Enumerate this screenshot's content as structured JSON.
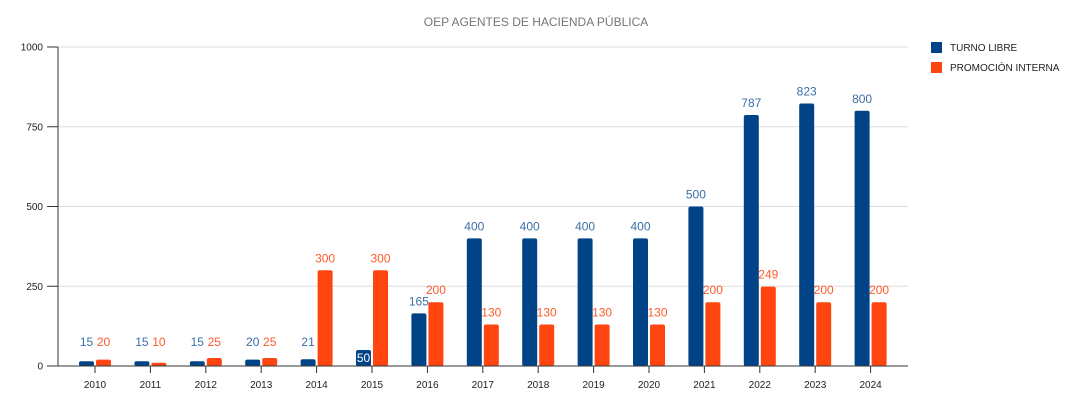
{
  "chart_data": {
    "type": "bar",
    "title": "OEP AGENTES DE HACIENDA PÚBLICA",
    "xlabel": "",
    "ylabel": "",
    "ylim": [
      0,
      1000
    ],
    "yticks": [
      0,
      250,
      500,
      750,
      1000
    ],
    "grid": true,
    "legend_position": "right",
    "categories": [
      "2010",
      "2011",
      "2012",
      "2013",
      "2014",
      "2015",
      "2016",
      "2017",
      "2018",
      "2019",
      "2020",
      "2021",
      "2022",
      "2023",
      "2024"
    ],
    "series": [
      {
        "name": "TURNO LIBRE",
        "color": "#004386",
        "label_color": "#3d6fa8",
        "values": [
          15,
          15,
          15,
          20,
          21,
          50,
          165,
          400,
          400,
          400,
          400,
          500,
          787,
          823,
          800
        ]
      },
      {
        "name": "PROMOCIÓN INTERNA",
        "color": "#ff4611",
        "label_color": "#ff5a2a",
        "values": [
          20,
          10,
          25,
          25,
          300,
          300,
          200,
          130,
          130,
          130,
          130,
          200,
          249,
          200,
          200
        ]
      }
    ]
  }
}
